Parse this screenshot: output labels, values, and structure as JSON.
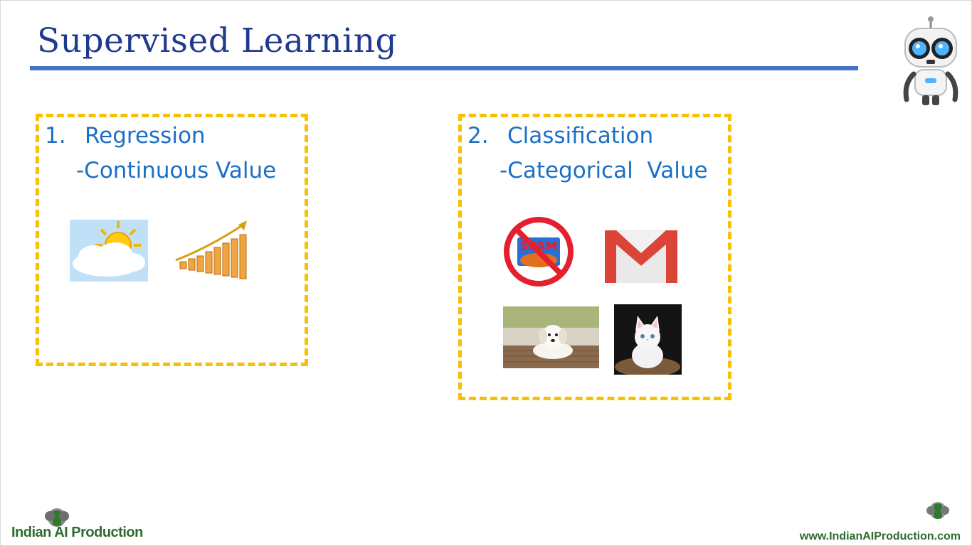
{
  "slide": {
    "title": "Supervised Learning",
    "colors": {
      "title": "#1f3a8f",
      "rule": "#4472c4",
      "box_border": "#f7c000",
      "text": "#1a6fc7"
    }
  },
  "regression": {
    "number": "1.",
    "name": "Regression",
    "subtitle": "-Continuous Value",
    "icons": [
      "weather-sun-cloud-icon",
      "growth-bar-chart-icon"
    ]
  },
  "classification": {
    "number": "2.",
    "name": "Classification",
    "subtitle": "-Categorical  Value",
    "icons": [
      "no-spam-icon",
      "gmail-icon",
      "dog-photo",
      "cat-photo"
    ],
    "spam_label": "SPAM"
  },
  "footer": {
    "brand": "Indian AI Production",
    "url": "www.IndianAIProduction.com"
  }
}
